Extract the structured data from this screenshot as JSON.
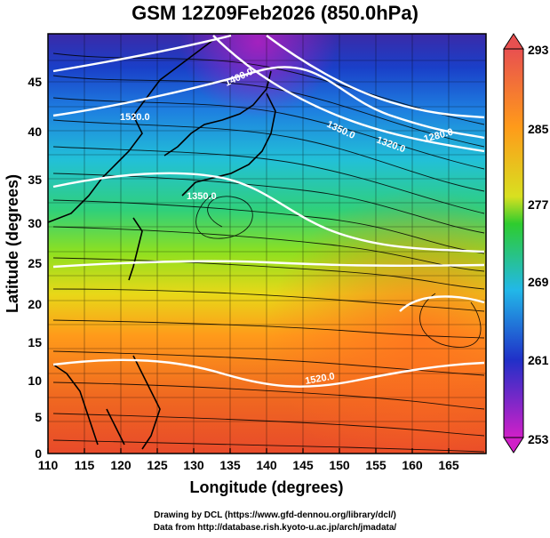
{
  "title": "GSM 12Z09Feb2026 (850.0hPa)",
  "x_axis": {
    "label": "Longitude (degrees)",
    "ticks": [
      "110",
      "115",
      "120",
      "125",
      "130",
      "135",
      "140",
      "145",
      "150",
      "155",
      "160",
      "165"
    ]
  },
  "y_axis": {
    "label": "Latitude  (degrees)",
    "ticks": [
      "0",
      "5",
      "10",
      "15",
      "20",
      "25",
      "30",
      "35",
      "40",
      "45"
    ]
  },
  "colorbar": {
    "ticks": [
      "293",
      "285",
      "277",
      "269",
      "261",
      "253"
    ],
    "colors": [
      "#e85050",
      "#ff9a1a",
      "#2ecc2e",
      "#22b8e8",
      "#2030c8",
      "#d020c8"
    ]
  },
  "contour_labels": [
    "1400.0",
    "1350.0",
    "1320.0",
    "1280.0",
    "1350.0",
    "1520.0",
    "1520.0"
  ],
  "credits": {
    "line1": "Drawing by DCL (https://www.gfd-dennou.org/library/dcl/)",
    "line2": "Data from http://database.rish.kyoto-u.ac.jp/arch/jmadata/"
  },
  "chart_data": {
    "type": "heatmap",
    "title": "GSM 12Z09Feb2026 (850.0hPa)",
    "xlabel": "Longitude (degrees)",
    "ylabel": "Latitude  (degrees)",
    "xlim": [
      110,
      170
    ],
    "ylim": [
      0,
      50
    ],
    "colorbar_range": [
      253,
      293
    ],
    "colorbar_ticks": [
      253,
      261,
      269,
      277,
      285,
      293
    ],
    "contour_levels": [
      1280,
      1320,
      1350,
      1400,
      1520
    ]
  }
}
